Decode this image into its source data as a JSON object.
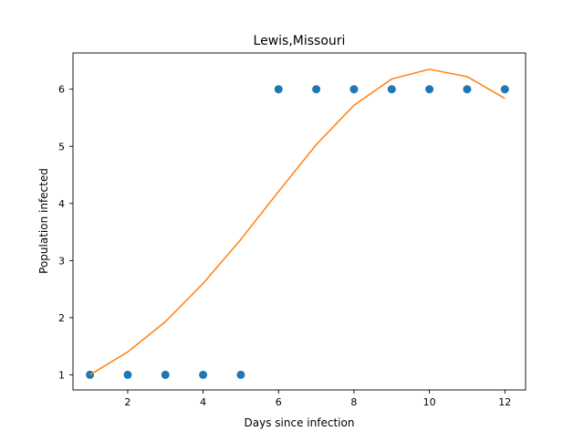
{
  "chart_data": {
    "type": "scatter",
    "title": "Lewis,Missouri",
    "xlabel": "Days since infection",
    "ylabel": "Population infected",
    "xlim": [
      0.55,
      12.55
    ],
    "ylim": [
      0.735,
      6.635
    ],
    "xticks": [
      2,
      4,
      6,
      8,
      10,
      12
    ],
    "yticks": [
      1,
      2,
      3,
      4,
      5,
      6
    ],
    "grid": false,
    "series": [
      {
        "kind": "scatter",
        "color": "#1f77b4",
        "x": [
          1,
          2,
          3,
          4,
          5,
          6,
          7,
          8,
          9,
          10,
          11,
          12
        ],
        "y": [
          1,
          1,
          1,
          1,
          1,
          6,
          6,
          6,
          6,
          6,
          6,
          6
        ]
      },
      {
        "kind": "line",
        "color": "#ff7f0e",
        "x": [
          1,
          2,
          3,
          4,
          5,
          6,
          7,
          8,
          9,
          10,
          11,
          12
        ],
        "y": [
          1.0,
          1.4,
          1.93,
          2.6,
          3.37,
          4.21,
          5.03,
          5.72,
          6.18,
          6.35,
          6.22,
          5.84
        ]
      }
    ]
  }
}
